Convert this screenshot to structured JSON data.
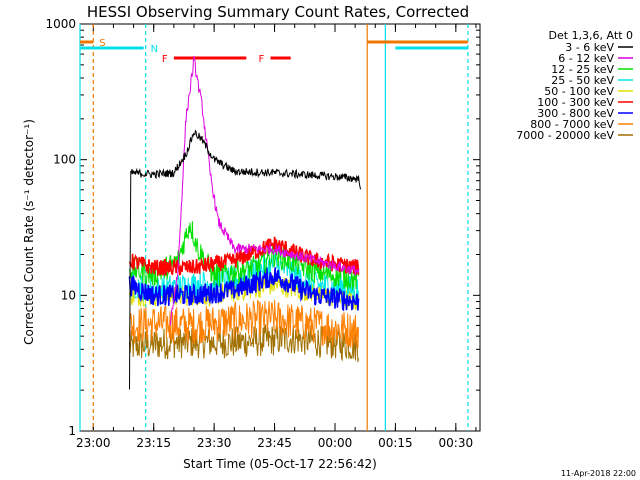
{
  "chart_data": {
    "type": "line",
    "title": "HESSI Observing Summary Count Rates, Corrected",
    "xlabel": "Start Time (05-Oct-17 22:56:42)",
    "ylabel": "Corrected Count Rate (s⁻¹ detector⁻¹)",
    "x_ticks": [
      "23:00",
      "23:15",
      "23:30",
      "23:45",
      "00:00",
      "00:15",
      "00:30"
    ],
    "y_ticks": [
      "1",
      "10",
      "100",
      "1000"
    ],
    "y_scale": "log",
    "ylim": [
      1,
      1000
    ],
    "xlim": [
      "22:56:42",
      "00:36:00"
    ],
    "legend_header": "Det 1,3,6, Att 0",
    "legend_placement": "right, outside",
    "footer_date": "11-Apr-2018 22:00",
    "flags": [
      {
        "label": "S",
        "color": "#f07800",
        "start": "22:56:42",
        "end": "23:00:00"
      },
      {
        "label": "N",
        "color": "#00e0e8",
        "start": "22:56:42",
        "end": "23:12:30"
      },
      {
        "label": "F",
        "color": "#ff0000",
        "start": "23:20:00",
        "end": "23:38:00"
      },
      {
        "label": "F",
        "color": "#ff0000",
        "start": "23:44:00",
        "end": "23:49:00"
      },
      {
        "label": "",
        "color": "#f07800",
        "start": "00:08:00",
        "end": "00:33:00"
      },
      {
        "label": "",
        "color": "#00e0e8",
        "start": "00:15:00",
        "end": "00:33:00"
      }
    ],
    "vlines": [
      {
        "time": "22:56:42",
        "color": "#00e0e8",
        "style": "solid"
      },
      {
        "time": "23:00:00",
        "color": "#f07800",
        "style": "dashed"
      },
      {
        "time": "23:13:00",
        "color": "#00e0e8",
        "style": "dashed"
      },
      {
        "time": "00:08:00",
        "color": "#f07800",
        "style": "solid"
      },
      {
        "time": "00:12:30",
        "color": "#00e0e8",
        "style": "solid"
      },
      {
        "time": "00:33:00",
        "color": "#00e0e8",
        "style": "dashed"
      }
    ],
    "series": [
      {
        "name": "3 - 6 keV",
        "color": "#000000",
        "points": [
          [
            "23:09:00",
            2
          ],
          [
            "23:09:15",
            80
          ],
          [
            "23:15:00",
            78
          ],
          [
            "23:20:00",
            80
          ],
          [
            "23:23:00",
            110
          ],
          [
            "23:25:00",
            160
          ],
          [
            "23:27:00",
            140
          ],
          [
            "23:30:00",
            100
          ],
          [
            "23:35:00",
            82
          ],
          [
            "23:45:00",
            80
          ],
          [
            "00:00:00",
            75
          ],
          [
            "00:06:00",
            72
          ],
          [
            "00:06:30",
            60
          ]
        ]
      },
      {
        "name": "6 - 12 keV",
        "color": "#e000e0",
        "points": [
          [
            "23:19:00",
            6
          ],
          [
            "23:21:00",
            15
          ],
          [
            "23:23:00",
            200
          ],
          [
            "23:25:00",
            540
          ],
          [
            "23:27:00",
            250
          ],
          [
            "23:29:00",
            80
          ],
          [
            "23:31:00",
            35
          ],
          [
            "23:35:00",
            22
          ],
          [
            "23:45:00",
            22
          ],
          [
            "23:55:00",
            18
          ],
          [
            "00:06:00",
            15
          ]
        ]
      },
      {
        "name": "12 - 25 keV",
        "color": "#00e000",
        "points": [
          [
            "23:09:00",
            16
          ],
          [
            "23:15:00",
            14
          ],
          [
            "23:21:00",
            18
          ],
          [
            "23:24:00",
            34
          ],
          [
            "23:26:00",
            22
          ],
          [
            "23:30:00",
            14
          ],
          [
            "23:40:00",
            16
          ],
          [
            "23:45:00",
            20
          ],
          [
            "23:55:00",
            15
          ],
          [
            "00:06:00",
            13
          ]
        ]
      },
      {
        "name": "25 - 50 keV",
        "color": "#00e8e8",
        "points": [
          [
            "23:09:00",
            12
          ],
          [
            "23:15:00",
            11
          ],
          [
            "23:25:00",
            12
          ],
          [
            "23:35:00",
            13
          ],
          [
            "23:45:00",
            17
          ],
          [
            "23:55:00",
            12
          ],
          [
            "00:06:00",
            11
          ]
        ]
      },
      {
        "name": "50 - 100 keV",
        "color": "#e0e000",
        "points": [
          [
            "23:09:00",
            10
          ],
          [
            "23:30:00",
            10
          ],
          [
            "23:45:00",
            12
          ],
          [
            "00:06:00",
            9
          ]
        ]
      },
      {
        "name": "100 - 300 keV",
        "color": "#ff0000",
        "points": [
          [
            "23:09:00",
            18
          ],
          [
            "23:15:00",
            16
          ],
          [
            "23:25:00",
            16
          ],
          [
            "23:35:00",
            18
          ],
          [
            "23:45:00",
            24
          ],
          [
            "23:55:00",
            18
          ],
          [
            "00:06:00",
            16
          ]
        ]
      },
      {
        "name": "300 - 800 keV",
        "color": "#0000ff",
        "points": [
          [
            "23:09:00",
            12
          ],
          [
            "23:15:00",
            10
          ],
          [
            "23:25:00",
            10
          ],
          [
            "23:35:00",
            11
          ],
          [
            "23:45:00",
            14
          ],
          [
            "23:55:00",
            10
          ],
          [
            "00:06:00",
            9
          ]
        ]
      },
      {
        "name": "800 - 7000 keV",
        "color": "#ff8000",
        "points": [
          [
            "23:09:00",
            6
          ],
          [
            "23:15:00",
            6.2
          ],
          [
            "23:25:00",
            6
          ],
          [
            "23:35:00",
            6.5
          ],
          [
            "23:45:00",
            6.8
          ],
          [
            "23:55:00",
            6
          ],
          [
            "00:06:00",
            5.5
          ]
        ]
      },
      {
        "name": "7000 - 20000 keV",
        "color": "#a07000",
        "points": [
          [
            "23:09:00",
            4.2
          ],
          [
            "23:20:00",
            4.5
          ],
          [
            "23:35:00",
            4.5
          ],
          [
            "23:50:00",
            4.8
          ],
          [
            "00:06:00",
            4.2
          ]
        ]
      }
    ]
  }
}
